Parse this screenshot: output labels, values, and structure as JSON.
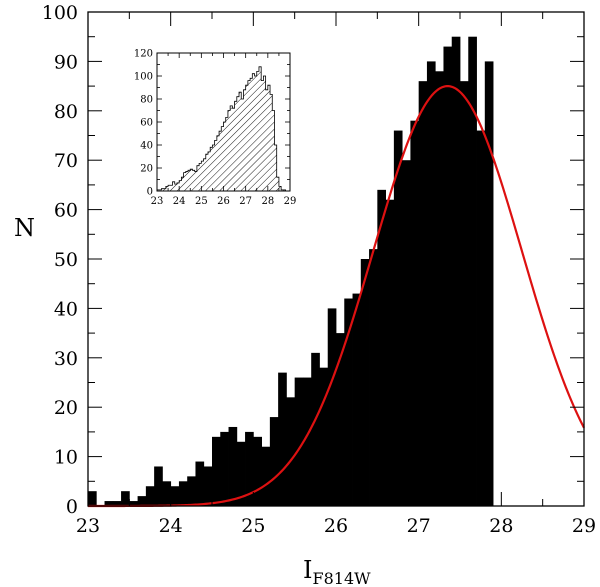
{
  "chart_data": [
    {
      "id": "main",
      "type": "bar",
      "xlabel_main": "I",
      "xlabel_sub": "F814W",
      "ylabel": "N",
      "xlim": [
        23,
        29
      ],
      "ylim": [
        0,
        100
      ],
      "xticks": [
        "23",
        "24",
        "25",
        "26",
        "27",
        "28",
        "29"
      ],
      "yticks": [
        "0",
        "10",
        "20",
        "30",
        "40",
        "50",
        "60",
        "70",
        "80",
        "90",
        "100"
      ],
      "bin_width": 0.1,
      "bin_start": 23.0,
      "values": [
        3,
        0,
        1,
        1,
        3,
        1,
        2,
        4,
        8,
        5,
        4,
        5,
        6,
        9,
        8,
        14,
        15,
        16,
        13,
        15,
        14,
        12,
        18,
        27,
        22,
        26,
        26,
        31,
        28,
        40,
        35,
        42,
        43,
        50,
        52,
        64,
        62,
        76,
        70,
        78,
        86,
        90,
        88,
        93,
        95,
        86,
        95,
        76,
        90
      ],
      "series_color": "#000000",
      "curve": {
        "type": "gaussian",
        "amplitude": 85,
        "mean": 27.35,
        "sigma": 0.9,
        "color": "#dd1111"
      }
    },
    {
      "id": "inset",
      "type": "bar",
      "xlim": [
        23,
        29
      ],
      "ylim": [
        0,
        120
      ],
      "xticks": [
        "23",
        "24",
        "25",
        "26",
        "27",
        "28",
        "29"
      ],
      "yticks": [
        "0",
        "20",
        "40",
        "60",
        "80",
        "100",
        "120"
      ],
      "bin_width": 0.1,
      "bin_start": 23.0,
      "values": [
        1,
        1,
        2,
        2,
        4,
        5,
        5,
        8,
        6,
        7,
        9,
        12,
        16,
        17,
        18,
        19,
        18,
        17,
        22,
        24,
        26,
        28,
        32,
        34,
        38,
        40,
        44,
        48,
        52,
        56,
        60,
        64,
        70,
        74,
        72,
        78,
        82,
        86,
        80,
        88,
        92,
        96,
        98,
        102,
        100,
        104,
        108,
        96,
        100,
        88,
        92,
        84,
        70,
        40,
        12,
        4,
        1,
        1,
        0,
        0
      ]
    }
  ]
}
